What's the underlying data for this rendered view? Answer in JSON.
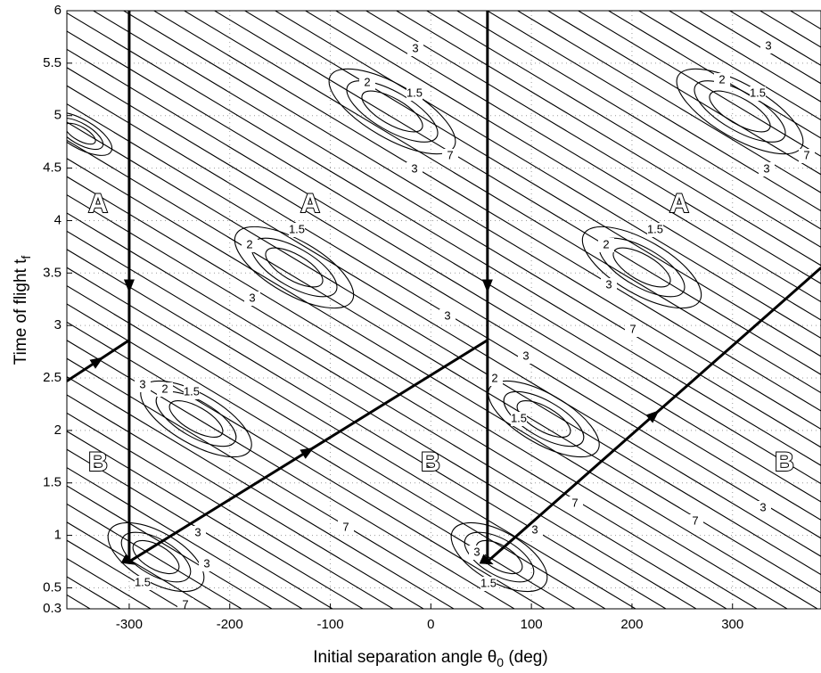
{
  "chart_data": {
    "type": "contour",
    "x_label": {
      "text": "Initial separation angle θ",
      "sub": "0",
      "suffix": " (deg)"
    },
    "y_label": {
      "text": "Time of flight t",
      "sub": "f"
    },
    "xlim": [
      -362,
      388
    ],
    "ylim": [
      0.3,
      6
    ],
    "xticks": [
      -300,
      -200,
      -100,
      0,
      100,
      200,
      300
    ],
    "yticks": [
      0.3,
      0.5,
      1,
      1.5,
      2,
      2.5,
      3,
      3.5,
      4,
      4.5,
      5,
      5.5,
      6
    ],
    "grid": true,
    "contour_levels": [
      1.5,
      2,
      3,
      7
    ],
    "annotations": [
      "A",
      "A",
      "A",
      "B",
      "B",
      "B"
    ],
    "trajectories": [
      {
        "x": [
          -300,
          -300,
          56.3
        ],
        "values": [
          6,
          0.75,
          2.86
        ]
      },
      {
        "x": [
          -362,
          -300
        ],
        "values": [
          2.47,
          2.86
        ]
      },
      {
        "x": [
          56.3,
          56.3,
          388
        ],
        "values": [
          6,
          0.75,
          3.55
        ]
      }
    ]
  }
}
